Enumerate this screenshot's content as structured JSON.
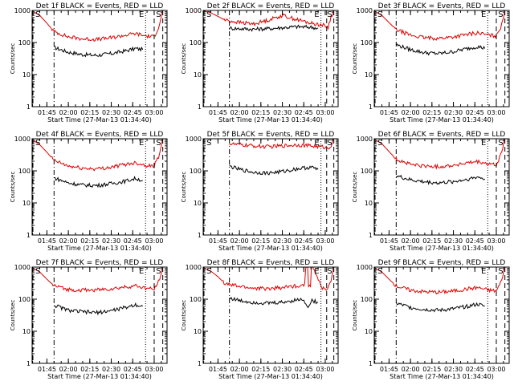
{
  "colors": {
    "events": "#000000",
    "lld": "#e00000",
    "axes": "#000000",
    "background": "#ffffff"
  },
  "shared": {
    "xlabel": "Start Time (27-Mar-13 01:34:40)",
    "ylabel": "Counts/sec",
    "x_tick_labels": [
      "01:45",
      "02:00",
      "02:15",
      "02:30",
      "02:45",
      "03:00"
    ],
    "y_tick_labels": [
      "1",
      "10",
      "100",
      "1000"
    ],
    "marker_letters": [
      "S",
      "E",
      "S"
    ]
  },
  "chart_data": [
    {
      "type": "line",
      "title": "Det 1f BLACK = Events, RED = LLD",
      "xlabel": "Start Time (27-Mar-13 01:34:40)",
      "ylabel": "Counts/sec",
      "yscale": "log",
      "xlim": [
        "01:34:40",
        "03:09:00"
      ],
      "ylim": [
        1,
        1000
      ],
      "markers": [
        {
          "label": "S",
          "time": "01:34:40",
          "style": "dashed"
        },
        {
          "label": "",
          "time": "01:50:00",
          "style": "dashdot"
        },
        {
          "label": "E",
          "time": "02:54:00",
          "style": "dotted"
        },
        {
          "label": "",
          "time": "03:00:00",
          "style": "dashed"
        },
        {
          "label": "S",
          "time": "03:06:00",
          "style": "dashed"
        }
      ],
      "series": [
        {
          "name": "Events",
          "color": "#000000",
          "x": [
            "01:50",
            "02:00",
            "02:10",
            "02:20",
            "02:30",
            "02:40",
            "02:47",
            "02:52"
          ],
          "values": [
            70,
            50,
            42,
            40,
            45,
            55,
            65,
            60
          ]
        },
        {
          "name": "LLD",
          "color": "#e00000",
          "x": [
            "01:34",
            "01:40",
            "01:45",
            "01:50",
            "02:00",
            "02:10",
            "02:20",
            "02:30",
            "02:40",
            "02:47",
            "02:54",
            "03:00",
            "03:03",
            "03:06"
          ],
          "values": [
            1000,
            700,
            400,
            220,
            150,
            130,
            125,
            140,
            170,
            190,
            160,
            150,
            300,
            1000
          ]
        }
      ]
    },
    {
      "type": "line",
      "title": "Det 2f BLACK = Events, RED = LLD",
      "xlabel": "Start Time (27-Mar-13 01:34:40)",
      "ylabel": "Counts/sec",
      "yscale": "log",
      "xlim": [
        "01:34:40",
        "03:09:00"
      ],
      "ylim": [
        1,
        1000
      ],
      "markers": [
        {
          "label": "S",
          "time": "01:34:40",
          "style": "dashed"
        },
        {
          "label": "",
          "time": "01:53:00",
          "style": "dashdot"
        },
        {
          "label": "E",
          "time": "02:57:00",
          "style": "dotted"
        },
        {
          "label": "",
          "time": "03:01:00",
          "style": "dashed"
        },
        {
          "label": "S",
          "time": "03:06:00",
          "style": "dashed"
        }
      ],
      "series": [
        {
          "name": "Events",
          "color": "#000000",
          "x": [
            "01:53",
            "02:00",
            "02:10",
            "02:20",
            "02:30",
            "02:40",
            "02:50",
            "02:55"
          ],
          "values": [
            280,
            270,
            260,
            270,
            290,
            310,
            300,
            280
          ]
        },
        {
          "name": "LLD",
          "color": "#e00000",
          "x": [
            "01:34",
            "01:40",
            "01:45",
            "01:50",
            "02:00",
            "02:10",
            "02:20",
            "02:30",
            "02:40",
            "02:50",
            "02:58",
            "03:02",
            "03:04",
            "03:06"
          ],
          "values": [
            1000,
            850,
            650,
            500,
            420,
            380,
            500,
            700,
            520,
            400,
            350,
            300,
            600,
            1000
          ]
        }
      ]
    },
    {
      "type": "line",
      "title": "Det 3f BLACK = Events, RED = LLD",
      "xlabel": "Start Time (27-Mar-13 01:34:40)",
      "ylabel": "Counts/sec",
      "yscale": "log",
      "xlim": [
        "01:34:40",
        "03:09:00"
      ],
      "ylim": [
        1,
        1000
      ],
      "markers": [
        {
          "label": "S",
          "time": "01:34:40",
          "style": "dashed"
        },
        {
          "label": "",
          "time": "01:50:00",
          "style": "dashdot"
        },
        {
          "label": "E",
          "time": "02:54:00",
          "style": "dotted"
        },
        {
          "label": "",
          "time": "03:00:00",
          "style": "dashed"
        },
        {
          "label": "S",
          "time": "03:06:00",
          "style": "dashed"
        }
      ],
      "series": [
        {
          "name": "Events",
          "color": "#000000",
          "x": [
            "01:50",
            "02:00",
            "02:10",
            "02:20",
            "02:30",
            "02:40",
            "02:47",
            "02:52"
          ],
          "values": [
            85,
            60,
            48,
            45,
            52,
            65,
            75,
            65
          ]
        },
        {
          "name": "LLD",
          "color": "#e00000",
          "x": [
            "01:34",
            "01:40",
            "01:45",
            "01:50",
            "02:00",
            "02:10",
            "02:20",
            "02:30",
            "02:40",
            "02:47",
            "02:54",
            "03:00",
            "03:03",
            "03:06"
          ],
          "values": [
            1000,
            700,
            420,
            250,
            170,
            140,
            135,
            150,
            180,
            200,
            170,
            160,
            300,
            1000
          ]
        }
      ]
    },
    {
      "type": "line",
      "title": "Det 4f BLACK = Events, RED = LLD",
      "xlabel": "Start Time (27-Mar-13 01:34:40)",
      "ylabel": "Counts/sec",
      "yscale": "log",
      "xlim": [
        "01:34:40",
        "03:09:00"
      ],
      "ylim": [
        1,
        1000
      ],
      "markers": [
        {
          "label": "S",
          "time": "01:34:40",
          "style": "dashed"
        },
        {
          "label": "",
          "time": "01:50:00",
          "style": "dashdot"
        },
        {
          "label": "E",
          "time": "02:54:00",
          "style": "dotted"
        },
        {
          "label": "",
          "time": "03:00:00",
          "style": "dashed"
        },
        {
          "label": "S",
          "time": "03:06:00",
          "style": "dashed"
        }
      ],
      "series": [
        {
          "name": "Events",
          "color": "#000000",
          "x": [
            "01:50",
            "02:00",
            "02:10",
            "02:20",
            "02:30",
            "02:40",
            "02:47",
            "02:52"
          ],
          "values": [
            60,
            42,
            36,
            35,
            40,
            48,
            58,
            50
          ]
        },
        {
          "name": "LLD",
          "color": "#e00000",
          "x": [
            "01:34",
            "01:40",
            "01:45",
            "01:50",
            "02:00",
            "02:10",
            "02:20",
            "02:30",
            "02:40",
            "02:47",
            "02:54",
            "03:00",
            "03:03",
            "03:06"
          ],
          "values": [
            1000,
            650,
            380,
            210,
            140,
            120,
            115,
            130,
            160,
            180,
            150,
            140,
            280,
            1000
          ]
        }
      ]
    },
    {
      "type": "line",
      "title": "Det 5f BLACK = Events, RED = LLD",
      "xlabel": "Start Time (27-Mar-13 01:34:40)",
      "ylabel": "Counts/sec",
      "yscale": "log",
      "xlim": [
        "01:34:40",
        "03:09:00"
      ],
      "ylim": [
        1,
        1000
      ],
      "markers": [
        {
          "label": "S",
          "time": "01:34:40",
          "style": "dashed"
        },
        {
          "label": "",
          "time": "01:53:00",
          "style": "dashdot"
        },
        {
          "label": "E",
          "time": "02:57:00",
          "style": "dotted"
        },
        {
          "label": "",
          "time": "03:01:00",
          "style": "dashed"
        },
        {
          "label": "S",
          "time": "03:06:00",
          "style": "dashed"
        }
      ],
      "series": [
        {
          "name": "Events",
          "color": "#000000",
          "x": [
            "01:53",
            "02:00",
            "02:10",
            "02:20",
            "02:30",
            "02:40",
            "02:50",
            "02:55"
          ],
          "values": [
            140,
            110,
            90,
            85,
            95,
            115,
            130,
            110
          ]
        },
        {
          "name": "LLD",
          "color": "#e00000",
          "x": [
            "01:53",
            "02:00",
            "02:10",
            "02:20",
            "02:30",
            "02:40",
            "02:50",
            "02:58",
            "03:02",
            "03:04",
            "03:06"
          ],
          "values": [
            700,
            650,
            600,
            560,
            600,
            650,
            600,
            560,
            520,
            600,
            1000
          ]
        }
      ]
    },
    {
      "type": "line",
      "title": "Det 6f BLACK = Events, RED = LLD",
      "xlabel": "Start Time (27-Mar-13 01:34:40)",
      "ylabel": "Counts/sec",
      "yscale": "log",
      "xlim": [
        "01:34:40",
        "03:09:00"
      ],
      "ylim": [
        1,
        1000
      ],
      "markers": [
        {
          "label": "S",
          "time": "01:34:40",
          "style": "dashed"
        },
        {
          "label": "",
          "time": "01:50:00",
          "style": "dashdot"
        },
        {
          "label": "E",
          "time": "02:54:00",
          "style": "dotted"
        },
        {
          "label": "",
          "time": "03:00:00",
          "style": "dashed"
        },
        {
          "label": "S",
          "time": "03:06:00",
          "style": "dashed"
        }
      ],
      "series": [
        {
          "name": "Events",
          "color": "#000000",
          "x": [
            "01:50",
            "02:00",
            "02:10",
            "02:20",
            "02:30",
            "02:40",
            "02:47",
            "02:52"
          ],
          "values": [
            70,
            52,
            45,
            42,
            46,
            55,
            64,
            56
          ]
        },
        {
          "name": "LLD",
          "color": "#e00000",
          "x": [
            "01:34",
            "01:40",
            "01:45",
            "01:50",
            "02:00",
            "02:10",
            "02:20",
            "02:30",
            "02:40",
            "02:47",
            "02:54",
            "03:00",
            "03:03",
            "03:06"
          ],
          "values": [
            1000,
            700,
            400,
            230,
            160,
            140,
            135,
            150,
            175,
            190,
            165,
            150,
            300,
            1000
          ]
        }
      ]
    },
    {
      "type": "line",
      "title": "Det 7f BLACK = Events, RED = LLD",
      "xlabel": "Start Time (27-Mar-13 01:34:40)",
      "ylabel": "Counts/sec",
      "yscale": "log",
      "xlim": [
        "01:34:40",
        "03:09:00"
      ],
      "ylim": [
        1,
        1000
      ],
      "markers": [
        {
          "label": "S",
          "time": "01:34:40",
          "style": "dashed"
        },
        {
          "label": "",
          "time": "01:50:00",
          "style": "dashdot"
        },
        {
          "label": "E",
          "time": "02:54:00",
          "style": "dotted"
        },
        {
          "label": "",
          "time": "03:00:00",
          "style": "dashed"
        },
        {
          "label": "S",
          "time": "03:06:00",
          "style": "dashed"
        }
      ],
      "series": [
        {
          "name": "Events",
          "color": "#000000",
          "x": [
            "01:50",
            "02:00",
            "02:10",
            "02:20",
            "02:30",
            "02:40",
            "02:47",
            "02:52"
          ],
          "values": [
            65,
            45,
            40,
            38,
            44,
            55,
            68,
            60
          ]
        },
        {
          "name": "LLD",
          "color": "#e00000",
          "x": [
            "01:34",
            "01:40",
            "01:45",
            "01:50",
            "02:00",
            "02:10",
            "02:20",
            "02:30",
            "02:40",
            "02:47",
            "02:54",
            "03:00",
            "03:03",
            "03:06"
          ],
          "values": [
            1000,
            700,
            420,
            260,
            200,
            190,
            195,
            210,
            240,
            260,
            220,
            200,
            350,
            1000
          ]
        }
      ]
    },
    {
      "type": "line",
      "title": "Det 8f BLACK = Events, RED = LLD",
      "xlabel": "Start Time (27-Mar-13 01:34:40)",
      "ylabel": "Counts/sec",
      "yscale": "log",
      "xlim": [
        "01:34:40",
        "03:09:00"
      ],
      "ylim": [
        1,
        1000
      ],
      "markers": [
        {
          "label": "S",
          "time": "01:34:40",
          "style": "dashed"
        },
        {
          "label": "",
          "time": "01:53:00",
          "style": "dashdot"
        },
        {
          "label": "E",
          "time": "02:57:00",
          "style": "dotted"
        },
        {
          "label": "",
          "time": "03:01:00",
          "style": "dashed"
        },
        {
          "label": "S",
          "time": "03:06:00",
          "style": "dashed"
        }
      ],
      "series": [
        {
          "name": "Events",
          "color": "#000000",
          "x": [
            "01:53",
            "02:00",
            "02:10",
            "02:20",
            "02:30",
            "02:40",
            "02:45",
            "02:48",
            "02:50",
            "02:55"
          ],
          "values": [
            110,
            90,
            80,
            75,
            80,
            95,
            100,
            50,
            90,
            80
          ]
        },
        {
          "name": "LLD",
          "color": "#e00000",
          "x": [
            "01:34",
            "01:40",
            "01:45",
            "01:50",
            "02:00",
            "02:10",
            "02:20",
            "02:30",
            "02:40",
            "02:45",
            "02:47",
            "02:49",
            "02:51",
            "02:58",
            "03:02",
            "03:04",
            "03:06"
          ],
          "values": [
            1000,
            750,
            500,
            300,
            250,
            220,
            210,
            230,
            260,
            280,
            1000,
            280,
            1000,
            220,
            200,
            400,
            1000
          ]
        }
      ]
    },
    {
      "type": "line",
      "title": "Det 9f BLACK = Events, RED = LLD",
      "xlabel": "Start Time (27-Mar-13 01:34:40)",
      "ylabel": "Counts/sec",
      "yscale": "log",
      "xlim": [
        "01:34:40",
        "03:09:00"
      ],
      "ylim": [
        1,
        1000
      ],
      "markers": [
        {
          "label": "S",
          "time": "01:34:40",
          "style": "dashed"
        },
        {
          "label": "",
          "time": "01:50:00",
          "style": "dashdot"
        },
        {
          "label": "E",
          "time": "02:54:00",
          "style": "dotted"
        },
        {
          "label": "",
          "time": "03:00:00",
          "style": "dashed"
        },
        {
          "label": "S",
          "time": "03:06:00",
          "style": "dashed"
        }
      ],
      "series": [
        {
          "name": "Events",
          "color": "#000000",
          "x": [
            "01:50",
            "02:00",
            "02:10",
            "02:20",
            "02:30",
            "02:40",
            "02:47",
            "02:52"
          ],
          "values": [
            75,
            55,
            48,
            45,
            50,
            60,
            70,
            60
          ]
        },
        {
          "name": "LLD",
          "color": "#e00000",
          "x": [
            "01:34",
            "01:40",
            "01:45",
            "01:50",
            "02:00",
            "02:10",
            "02:20",
            "02:30",
            "02:40",
            "02:47",
            "02:54",
            "03:00",
            "03:03",
            "03:06"
          ],
          "values": [
            1000,
            700,
            420,
            260,
            190,
            170,
            165,
            180,
            210,
            230,
            195,
            180,
            320,
            1000
          ]
        }
      ]
    }
  ]
}
